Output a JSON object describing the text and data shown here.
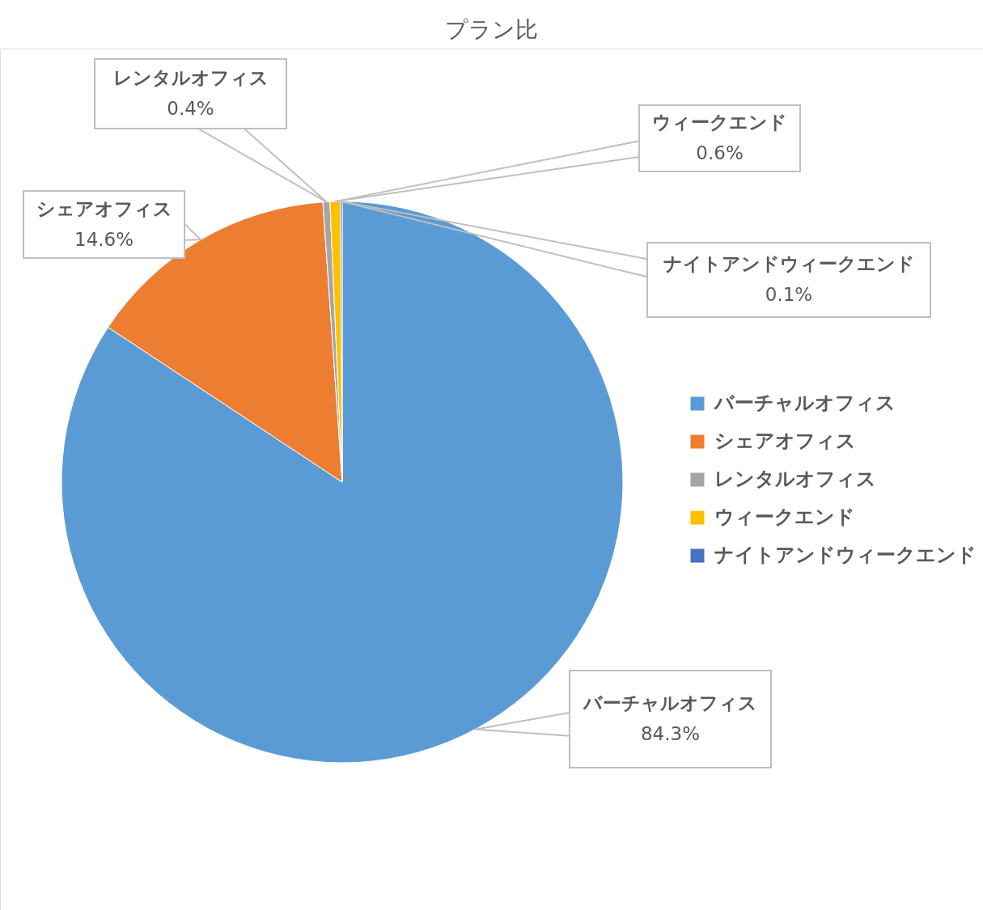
{
  "chart_data": {
    "type": "pie",
    "title": "プラン比",
    "categories": [
      "バーチャルオフィス",
      "シェアオフィス",
      "レンタルオフィス",
      "ウィークエンド",
      "ナイトアンドウィークエンド"
    ],
    "values": [
      84.3,
      14.6,
      0.4,
      0.6,
      0.1
    ],
    "colors": [
      "#5b9bd5",
      "#ed7d31",
      "#a5a5a5",
      "#ffc000",
      "#4472c4"
    ],
    "value_labels": [
      "84.3%",
      "14.6%",
      "0.4%",
      "0.6%",
      "0.1%"
    ],
    "legend": "right"
  }
}
